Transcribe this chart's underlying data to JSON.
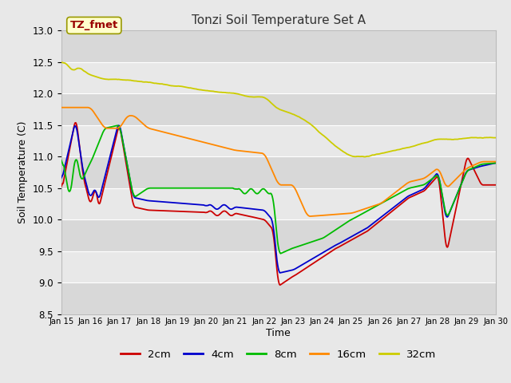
{
  "title": "Tonzi Soil Temperature Set A",
  "xlabel": "Time",
  "ylabel": "Soil Temperature (C)",
  "ylim": [
    8.5,
    13.0
  ],
  "yticks": [
    8.5,
    9.0,
    9.5,
    10.0,
    10.5,
    11.0,
    11.5,
    12.0,
    12.5,
    13.0
  ],
  "fig_bg": "#e8e8e8",
  "plot_bg_dark": "#d8d8d8",
  "plot_bg_light": "#e8e8e8",
  "grid_color": "#ffffff",
  "annotation_text": "TZ_fmet",
  "annotation_color": "#990000",
  "annotation_bg": "#ffffcc",
  "annotation_border": "#999900",
  "series": {
    "2cm": {
      "color": "#cc0000",
      "lw": 1.3
    },
    "4cm": {
      "color": "#0000cc",
      "lw": 1.3
    },
    "8cm": {
      "color": "#00bb00",
      "lw": 1.3
    },
    "16cm": {
      "color": "#ff8800",
      "lw": 1.3
    },
    "32cm": {
      "color": "#cccc00",
      "lw": 1.3
    }
  },
  "legend_labels": [
    "2cm",
    "4cm",
    "8cm",
    "16cm",
    "32cm"
  ],
  "legend_colors": [
    "#cc0000",
    "#0000cc",
    "#00bb00",
    "#ff8800",
    "#cccc00"
  ],
  "num_points": 720,
  "x_start": 15,
  "x_end": 30,
  "xtick_positions": [
    15,
    16,
    17,
    18,
    19,
    20,
    21,
    22,
    23,
    24,
    25,
    26,
    27,
    28,
    29,
    30
  ],
  "xtick_labels": [
    "Jan 15",
    "Jan 16",
    "Jan 17",
    "Jan 18",
    "Jan 19",
    "Jan 20",
    "Jan 21",
    "Jan 22",
    "Jan 23",
    "Jan 24",
    "Jan 25",
    "Jan 26",
    "Jan 27",
    "Jan 28",
    "Jan 29",
    "Jan 30"
  ]
}
